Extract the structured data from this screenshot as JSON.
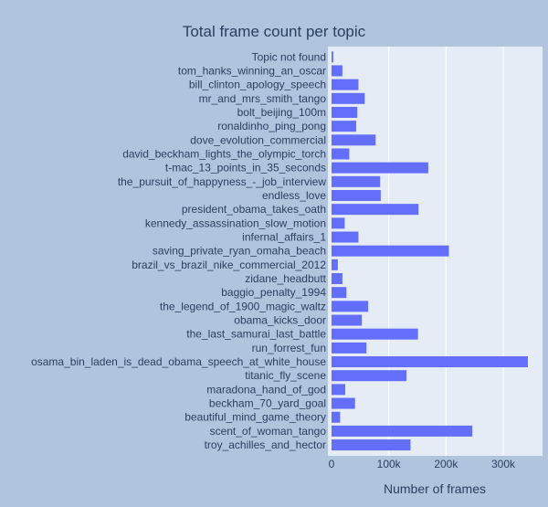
{
  "chart_data": {
    "type": "bar",
    "orientation": "horizontal",
    "title": "Total frame count per topic",
    "xlabel": "Number of frames",
    "ylabel": "",
    "xlim": [
      0,
      370000
    ],
    "x_ticks": [
      0,
      100000,
      200000,
      300000
    ],
    "x_tick_labels": [
      "0",
      "100k",
      "200k",
      "300k"
    ],
    "grid": true,
    "colors": {
      "bar": "#636efa",
      "plot_bg": "#e5ecf6",
      "paper_bg": "#b0c4de",
      "grid": "#ffffff",
      "text": "#2a3f5f"
    },
    "categories": [
      "Topic not found",
      "tom_hanks_winning_an_oscar",
      "bill_clinton_apology_speech",
      "mr_and_mrs_smith_tango",
      "bolt_beijing_100m",
      "ronaldinho_ping_pong",
      "dove_evolution_commercial",
      "david_beckham_lights_the_olympic_torch",
      "t-mac_13_points_in_35_seconds",
      "the_pursuit_of_happyness_-_job_interview",
      "endless_love",
      "president_obama_takes_oath",
      "kennedy_assassination_slow_motion",
      "infernal_affairs_1",
      "saving_private_ryan_omaha_beach",
      "brazil_vs_brazil_nike_commercial_2012",
      "zidane_headbutt",
      "baggio_penalty_1994",
      "the_legend_of_1900_magic_waltz",
      "obama_kicks_door",
      "the_last_samurai_last_battle",
      "run_forrest_fun",
      "osama_bin_laden_is_dead_obama_speech_at_white_house",
      "titanic_fly_scene",
      "maradona_hand_of_god",
      "beckham_70_yard_goal",
      "beautiful_mind_game_theory",
      "scent_of_woman_tango",
      "troy_achilles_and_hector"
    ],
    "values": [
      3000,
      19000,
      47000,
      58000,
      45000,
      43000,
      77000,
      31000,
      169000,
      85000,
      86000,
      152000,
      23000,
      47000,
      205000,
      11000,
      19000,
      26000,
      64000,
      53000,
      151000,
      61000,
      343000,
      131000,
      24000,
      41000,
      15000,
      246000,
      138000
    ]
  }
}
